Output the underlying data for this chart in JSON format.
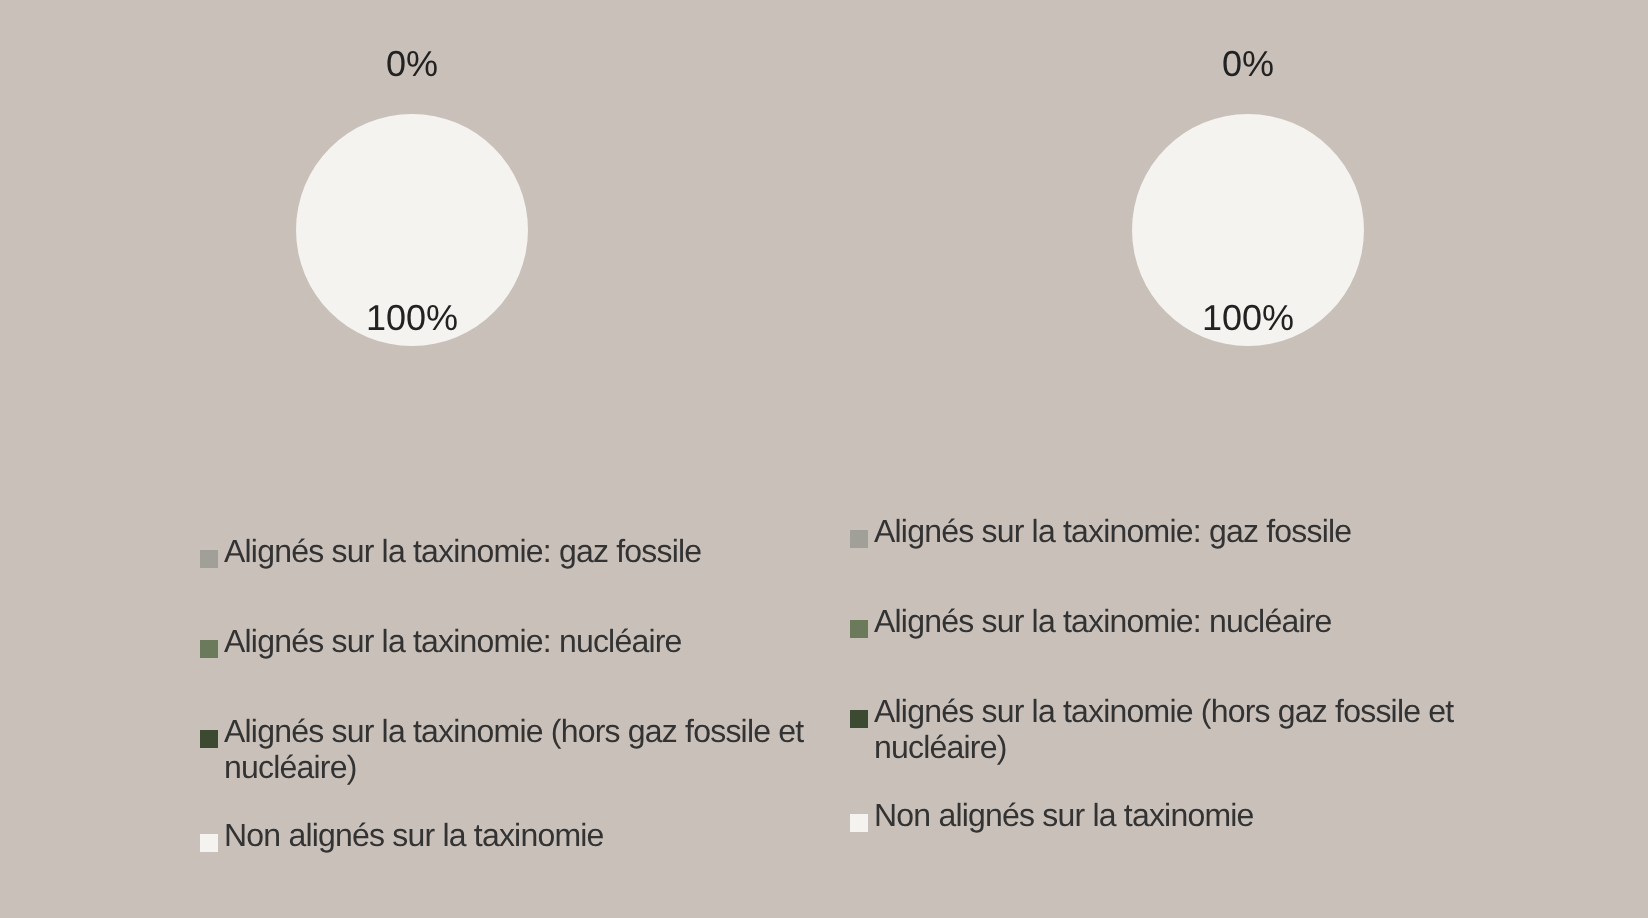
{
  "chart_data": [
    {
      "type": "pie",
      "categories": [
        "Alignés sur la taxinomie: gaz fossile",
        "Alignés sur la taxinomie: nucléaire",
        "Alignés sur la taxinomie (hors gaz fossile et nucléaire)",
        "Non alignés sur la taxinomie"
      ],
      "values": [
        0,
        0,
        0,
        100
      ],
      "colors": [
        "#a09f98",
        "#6b7a5a",
        "#3b4a30",
        "#f5f3f0"
      ],
      "value_labels": [
        null,
        null,
        "0%",
        "100%"
      ],
      "legend": "bottom"
    },
    {
      "type": "pie",
      "categories": [
        "Alignés sur la taxinomie: gaz fossile",
        "Alignés sur la taxinomie: nucléaire",
        "Alignés sur la taxinomie (hors gaz fossile et nucléaire)",
        "Non alignés sur la taxinomie"
      ],
      "values": [
        0,
        0,
        0,
        100
      ],
      "colors": [
        "#a09f98",
        "#6b7a5a",
        "#3b4a30",
        "#f5f3f0"
      ],
      "value_labels": [
        null,
        null,
        "0%",
        "100%"
      ],
      "legend": "bottom"
    }
  ]
}
